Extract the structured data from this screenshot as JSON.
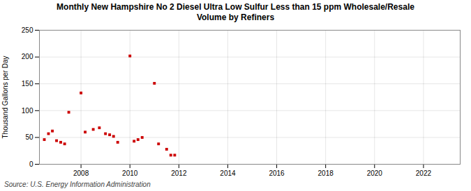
{
  "chart_data": {
    "type": "scatter",
    "title": "Monthly New Hampshire No 2 Diesel Ultra Low Sulfur Less than 15 ppm Wholesale/Resale\nVolume by Refiners",
    "ylabel": "Thousand Gallons per Day",
    "source": "Source: U.S. Energy Information Administration",
    "x": [
      2006.5,
      2006.67,
      2006.83,
      2007.0,
      2007.17,
      2007.33,
      2007.5,
      2008.0,
      2008.17,
      2008.5,
      2008.75,
      2009.0,
      2009.17,
      2009.33,
      2009.5,
      2010.0,
      2010.17,
      2010.33,
      2010.5,
      2011.0,
      2011.17,
      2011.5,
      2011.67,
      2011.83
    ],
    "values": [
      46,
      57,
      62,
      44,
      41,
      38,
      97,
      133,
      60,
      65,
      68,
      57,
      55,
      52,
      41,
      202,
      43,
      46,
      50,
      151,
      38,
      28,
      17,
      17
    ],
    "color": "#cc0000",
    "marker": "square",
    "xlim": [
      2006.3,
      2023.5
    ],
    "xticks": [
      2008,
      2010,
      2012,
      2014,
      2016,
      2018,
      2020,
      2022
    ],
    "ylim": [
      0,
      250
    ],
    "yticks": [
      0,
      50,
      100,
      150,
      200,
      250
    ],
    "grid": true
  }
}
